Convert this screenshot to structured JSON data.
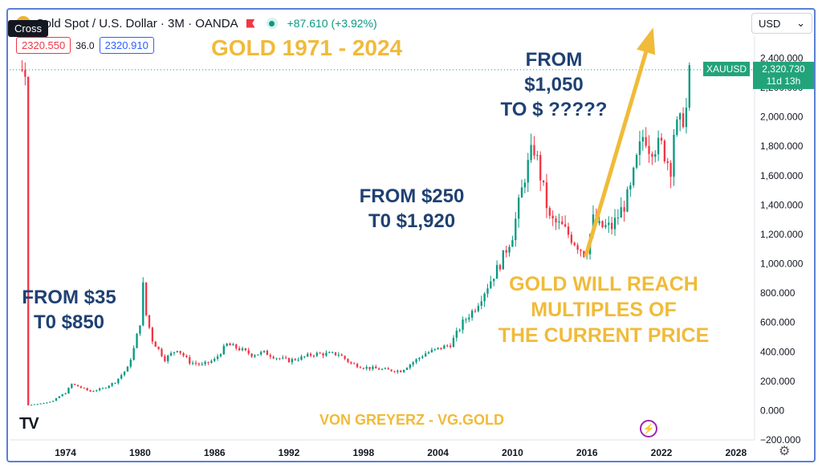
{
  "header": {
    "symbol_title": "Gold Spot / U.S. Dollar · 3M · OANDA",
    "change": "+87.610 (+3.92%)",
    "tooltip": "Cross",
    "bid": "2320.550",
    "spread": "36.0",
    "ask": "2320.910",
    "currency": "USD",
    "currency_caret": "⌄"
  },
  "annotations": {
    "title": "GOLD 1971 - 2024",
    "a1_line1": "FROM $35",
    "a1_line2": "T0 $850",
    "a2_line1": "FROM $250",
    "a2_line2": "T0 $1,920",
    "a3_line1": "FROM",
    "a3_line2": "$1,050",
    "a3_line3": "TO $ ?????",
    "forecast_line1": "GOLD WILL REACH",
    "forecast_line2": "MULTIPLES OF",
    "forecast_line3": "THE CURRENT PRICE",
    "credit": "VON GREYERZ - VG.GOLD"
  },
  "price_tag": {
    "symbol": "XAUUSD",
    "price": "2,320.730",
    "countdown": "11d 13h"
  },
  "colors": {
    "up": "#089981",
    "down": "#f23645",
    "arrow": "#f0bb3a",
    "price_tag": "#22a37a"
  },
  "icons": [
    "tradingview-logo-icon",
    "replay-icon",
    "settings-gear-icon",
    "flag-icon",
    "status-dot-icon"
  ],
  "chart_data": {
    "type": "candlestick",
    "title": "GOLD 1971 - 2024",
    "xlabel": "",
    "ylabel": "",
    "x_ticks": [
      "1974",
      "1980",
      "1986",
      "1992",
      "1998",
      "2004",
      "2010",
      "2016",
      "2022",
      "2028"
    ],
    "y_ticks": [
      "2,400.000",
      "2,200.000",
      "2,000.000",
      "1,800.000",
      "1,600.000",
      "1,400.000",
      "1,200.000",
      "1,000.000",
      "800.000",
      "600.000",
      "400.000",
      "200.000",
      "0.000",
      "−200.000"
    ],
    "xlim": [
      1969.5,
      2029.5
    ],
    "ylim": [
      -200,
      2550
    ],
    "last_price": 2320.73,
    "series": [
      {
        "values": [
          [
            1971,
            37
          ],
          [
            1972,
            48
          ],
          [
            1973,
            65
          ],
          [
            1973.5,
            97
          ],
          [
            1974,
            120
          ],
          [
            1974.5,
            180
          ],
          [
            1975,
            165
          ],
          [
            1976,
            130
          ],
          [
            1977,
            150
          ],
          [
            1978,
            195
          ],
          [
            1979,
            290
          ],
          [
            1979.5,
            420
          ],
          [
            1980,
            600
          ],
          [
            1980.25,
            850
          ],
          [
            1980.5,
            650
          ],
          [
            1981,
            480
          ],
          [
            1982,
            350
          ],
          [
            1983,
            420
          ],
          [
            1984,
            330
          ],
          [
            1985,
            310
          ],
          [
            1986,
            345
          ],
          [
            1987,
            450
          ],
          [
            1988,
            420
          ],
          [
            1989,
            380
          ],
          [
            1990,
            395
          ],
          [
            1991,
            360
          ],
          [
            1992,
            340
          ],
          [
            1993,
            360
          ],
          [
            1994,
            385
          ],
          [
            1995,
            385
          ],
          [
            1996,
            385
          ],
          [
            1997,
            320
          ],
          [
            1998,
            295
          ],
          [
            1999,
            285
          ],
          [
            2000,
            275
          ],
          [
            2001,
            270
          ],
          [
            2002,
            330
          ],
          [
            2003,
            390
          ],
          [
            2004,
            420
          ],
          [
            2005,
            450
          ],
          [
            2006,
            600
          ],
          [
            2007,
            700
          ],
          [
            2008,
            850
          ],
          [
            2009,
            1000
          ],
          [
            2010,
            1200
          ],
          [
            2011,
            1600
          ],
          [
            2011.7,
            1800
          ],
          [
            2012,
            1700
          ],
          [
            2013,
            1300
          ],
          [
            2014,
            1250
          ],
          [
            2015,
            1150
          ],
          [
            2015.9,
            1060
          ],
          [
            2016.5,
            1300
          ],
          [
            2017,
            1250
          ],
          [
            2018,
            1250
          ],
          [
            2019,
            1400
          ],
          [
            2019.5,
            1500
          ],
          [
            2020,
            1700
          ],
          [
            2020.6,
            1900
          ],
          [
            2021,
            1800
          ],
          [
            2022,
            1800
          ],
          [
            2022.5,
            1700
          ],
          [
            2022.8,
            1650
          ],
          [
            2023,
            1900
          ],
          [
            2023.5,
            1950
          ],
          [
            2024,
            2050
          ],
          [
            2024.3,
            2320.73
          ]
        ]
      }
    ]
  }
}
